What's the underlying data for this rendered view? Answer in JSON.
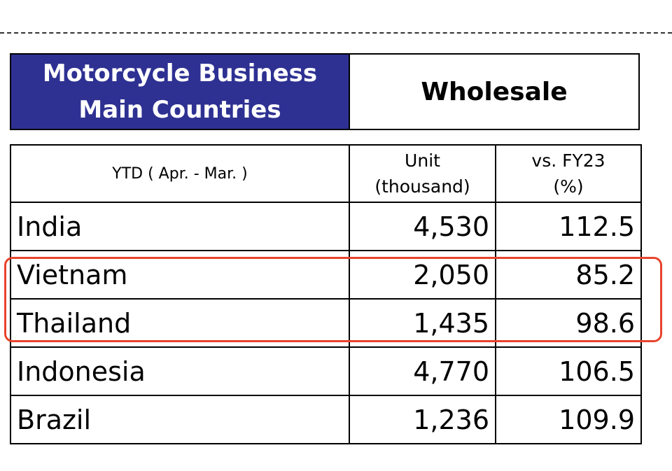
{
  "header": {
    "title_line1": "Motorcycle Business",
    "title_line2": "Main Countries",
    "section": "Wholesale"
  },
  "table": {
    "period_label": "YTD ( Apr. - Mar. )",
    "col_unit_line1": "Unit",
    "col_unit_line2": "(thousand)",
    "col_vs_line1": "vs. FY23",
    "col_vs_line2": "(%)",
    "rows": [
      {
        "country": "India",
        "units": "4,530",
        "vs": "112.5"
      },
      {
        "country": "Vietnam",
        "units": "2,050",
        "vs": "85.2"
      },
      {
        "country": "Thailand",
        "units": "1,435",
        "vs": "98.6"
      },
      {
        "country": "Indonesia",
        "units": "4,770",
        "vs": "106.5"
      },
      {
        "country": "Brazil",
        "units": "1,236",
        "vs": "109.9"
      }
    ]
  },
  "colors": {
    "header_bg": "#2e3192",
    "highlight": "#e8432c"
  }
}
